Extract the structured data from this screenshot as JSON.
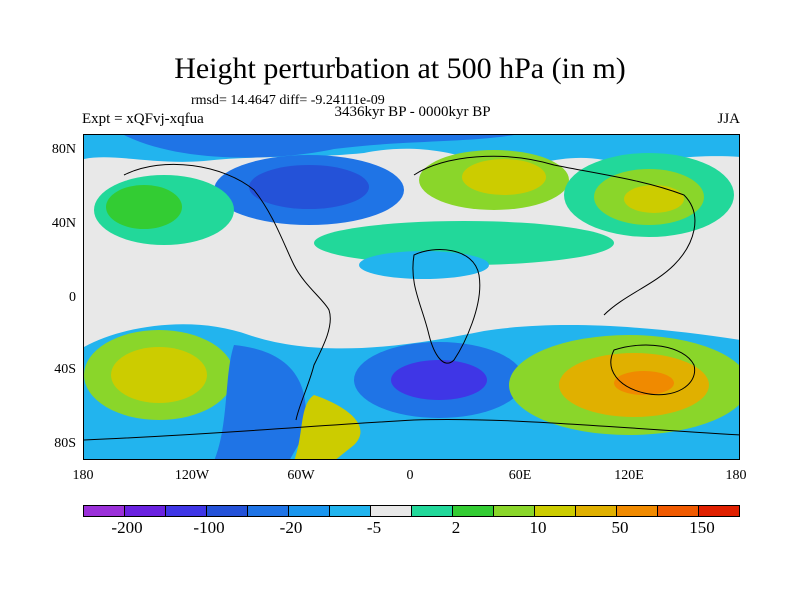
{
  "title": "Height perturbation at 500 hPa (in m)",
  "stats": "rmsd= 14.4647 diff= -9.24111e-09",
  "experiment": "Expt = xQFvj-xqfua",
  "period": "3436kyr BP - 0000kyr BP",
  "season": "JJA",
  "map": {
    "latitude_labels": [
      "80N",
      "40N",
      "0",
      "40S",
      "80S"
    ],
    "longitude_labels": [
      "180",
      "120W",
      "60W",
      "0",
      "60E",
      "120E",
      "180"
    ]
  },
  "colorbar": {
    "colors": [
      "#9b30d9",
      "#6a22e0",
      "#3f36e6",
      "#2452d8",
      "#1f74e6",
      "#1a96ee",
      "#22b4ee",
      "#e8e8e8",
      "#22d89a",
      "#33cc33",
      "#8ad62a",
      "#cccc00",
      "#e0b000",
      "#f08a00",
      "#f05a00",
      "#e02000"
    ],
    "labels": [
      "-200",
      "-100",
      "-20",
      "-5",
      "2",
      "10",
      "50",
      "150"
    ]
  }
}
